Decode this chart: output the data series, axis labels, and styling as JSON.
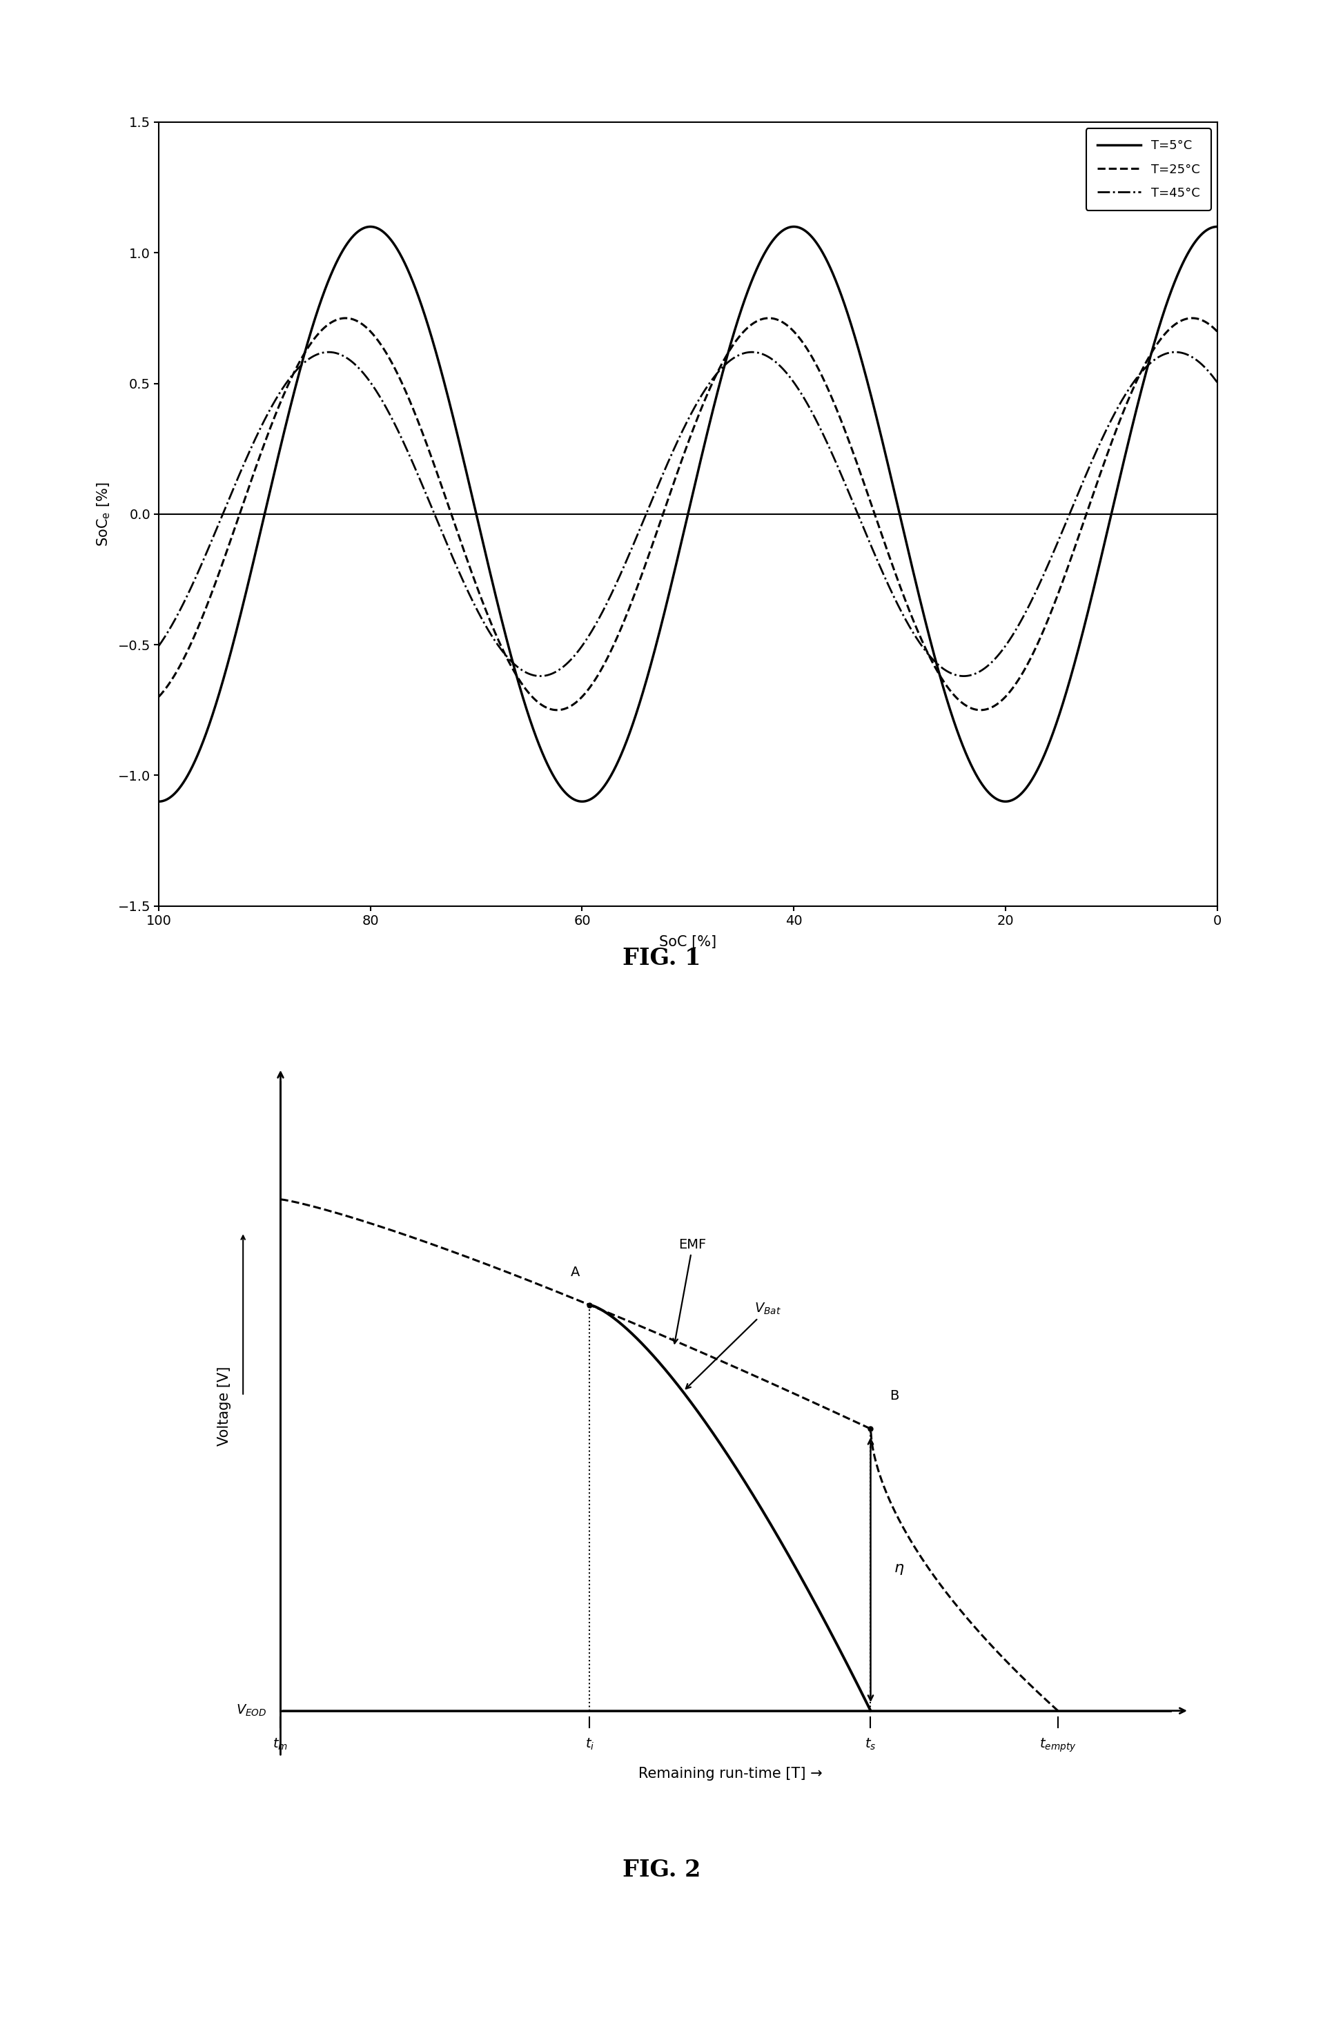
{
  "fig1": {
    "title": "FIG. 1",
    "xlabel": "SoC [%]",
    "ylabel": "SoC_e [%]",
    "xlim": [
      100,
      0
    ],
    "ylim": [
      -1.5,
      1.5
    ],
    "yticks": [
      -1.5,
      -1.0,
      -0.5,
      0.0,
      0.5,
      1.0,
      1.5
    ],
    "xticks": [
      100,
      80,
      60,
      40,
      20,
      0
    ],
    "amp_5": 1.1,
    "amp_25": 0.75,
    "amp_45": 0.62,
    "freq": 2.5,
    "phase_5": -1.5708,
    "phase_25": -1.2,
    "phase_45": -0.95,
    "legend": [
      {
        "label": "T=5°C",
        "ls": "-"
      },
      {
        "label": "T=25°C",
        "ls": "--"
      },
      {
        "label": "T=45°C",
        "ls": "-."
      }
    ]
  },
  "fig2": {
    "title": "FIG. 2",
    "xlabel": "Remaining run-time [T] →",
    "ylabel": "Voltage [V] →",
    "tm": 0.05,
    "ti": 0.38,
    "ts": 0.68,
    "tempty": 0.88,
    "VEOD_y": 0.07,
    "emf_start": 0.85,
    "emf_mid": 0.62,
    "emf_at_ts": 0.5,
    "emf_end": 0.07
  },
  "lc": "#000000",
  "bg": "#ffffff",
  "tick_fs": 14,
  "label_fs": 15,
  "legend_fs": 13,
  "title_fs": 24,
  "annot_fs": 13
}
